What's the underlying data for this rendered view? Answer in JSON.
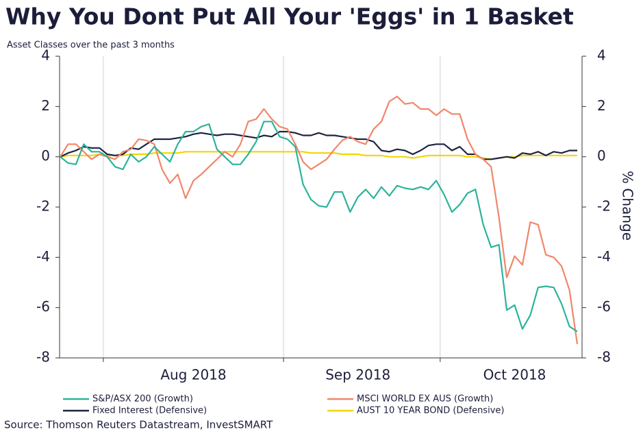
{
  "chart_data": {
    "type": "line",
    "title": "Why You Dont Put All Your 'Eggs' in 1 Basket",
    "subtitle": "Asset Classes over the past 3 months",
    "y2label": "% Change",
    "source": "Source: Thomson Reuters Datastream, InvestSMART",
    "categories": [
      null,
      null,
      null,
      null,
      null,
      null,
      null,
      null,
      null,
      null,
      null,
      null,
      null,
      null,
      null,
      null,
      null,
      "Aug 2018",
      null,
      null,
      null,
      null,
      null,
      null,
      null,
      null,
      null,
      null,
      null,
      null,
      null,
      null,
      null,
      null,
      null,
      null,
      null,
      null,
      "Sep 2018",
      null,
      null,
      null,
      null,
      null,
      null,
      null,
      null,
      null,
      null,
      null,
      null,
      null,
      null,
      null,
      null,
      null,
      null,
      null,
      "Oct 2018",
      null,
      null,
      null,
      null,
      null,
      null,
      null,
      null
    ],
    "ylim": [
      -8,
      4
    ],
    "yticks": [
      -8,
      -6,
      -4,
      -2,
      0,
      2,
      4
    ],
    "y2lim": [
      -8,
      4
    ],
    "y2ticks": [
      -8,
      -6,
      -4,
      -2,
      0,
      2,
      4
    ],
    "series": [
      {
        "name": "S&P/ASX 200 (Growth)",
        "color": "#2bb39a",
        "values": [
          0,
          -0.25,
          -0.3,
          0.5,
          0.2,
          0.2,
          0.0,
          -0.4,
          -0.5,
          0.1,
          -0.2,
          0.0,
          0.4,
          0.1,
          -0.2,
          0.5,
          1.0,
          1.0,
          1.2,
          1.3,
          0.3,
          0.0,
          -0.3,
          -0.3,
          0.1,
          0.6,
          1.4,
          1.4,
          0.8,
          0.7,
          0.4,
          -1.1,
          -1.7,
          -1.95,
          -2.0,
          -1.4,
          -1.4,
          -2.2,
          -1.6,
          -1.3,
          -1.65,
          -1.2,
          -1.55,
          -1.15,
          -1.25,
          -1.3,
          -1.2,
          -1.3,
          -0.95,
          -1.5,
          -2.2,
          -1.9,
          -1.45,
          -1.3,
          -2.7,
          -3.6,
          -3.5,
          -6.1,
          -5.9,
          -6.85,
          -6.3,
          -5.2,
          -5.15,
          -5.2,
          -5.85,
          -6.75,
          -6.95
        ]
      },
      {
        "name": "MSCI WORLD EX AUS (Growth)",
        "color": "#f0866a",
        "values": [
          0,
          0.5,
          0.5,
          0.2,
          -0.1,
          0.1,
          0.0,
          -0.1,
          0.2,
          0.3,
          0.7,
          0.65,
          0.5,
          -0.5,
          -1.05,
          -0.7,
          -1.65,
          -0.95,
          -0.7,
          -0.4,
          -0.1,
          0.2,
          0.0,
          0.5,
          1.4,
          1.5,
          1.9,
          1.5,
          1.2,
          1.1,
          0.5,
          -0.2,
          -0.5,
          -0.3,
          -0.1,
          0.3,
          0.65,
          0.8,
          0.6,
          0.5,
          1.1,
          1.4,
          2.2,
          2.4,
          2.1,
          2.15,
          1.9,
          1.9,
          1.65,
          1.9,
          1.7,
          1.7,
          0.7,
          0.1,
          -0.1,
          -0.4,
          -2.4,
          -4.8,
          -3.95,
          -4.3,
          -2.6,
          -2.7,
          -3.9,
          -4.0,
          -4.35,
          -5.3,
          -7.45
        ]
      },
      {
        "name": "Fixed Interest (Defensive)",
        "color": "#1e2240",
        "values": [
          0,
          0.15,
          0.25,
          0.4,
          0.35,
          0.35,
          0.1,
          0.05,
          0.1,
          0.35,
          0.3,
          0.5,
          0.7,
          0.7,
          0.7,
          0.75,
          0.8,
          0.9,
          0.95,
          0.9,
          0.85,
          0.9,
          0.9,
          0.85,
          0.8,
          0.75,
          0.85,
          0.8,
          1.0,
          1.0,
          0.95,
          0.85,
          0.85,
          0.95,
          0.85,
          0.85,
          0.8,
          0.75,
          0.7,
          0.7,
          0.6,
          0.25,
          0.2,
          0.3,
          0.25,
          0.1,
          0.25,
          0.45,
          0.5,
          0.5,
          0.25,
          0.4,
          0.1,
          0.1,
          -0.1,
          -0.1,
          -0.05,
          0.0,
          -0.05,
          0.15,
          0.1,
          0.2,
          0.05,
          0.2,
          0.15,
          0.25,
          0.25
        ]
      },
      {
        "name": "AUST 10 YEAR BOND (Defensive)",
        "color": "#f2d500",
        "values": [
          0,
          0.05,
          0.05,
          0.05,
          0.05,
          0.1,
          0.05,
          0.05,
          0.05,
          0.1,
          0.1,
          0.1,
          0.15,
          0.15,
          0.15,
          0.15,
          0.2,
          0.2,
          0.2,
          0.2,
          0.2,
          0.2,
          0.2,
          0.2,
          0.2,
          0.2,
          0.2,
          0.2,
          0.2,
          0.2,
          0.2,
          0.2,
          0.15,
          0.15,
          0.15,
          0.15,
          0.1,
          0.1,
          0.1,
          0.05,
          0.05,
          0.05,
          0.0,
          0.0,
          0.0,
          -0.05,
          0.0,
          0.05,
          0.05,
          0.05,
          0.05,
          0.05,
          0.0,
          0.0,
          -0.05,
          -0.1,
          -0.05,
          0.0,
          0.0,
          0.05,
          0.05,
          0.05,
          0.05,
          0.05,
          0.05,
          0.05,
          0.05
        ]
      }
    ]
  }
}
